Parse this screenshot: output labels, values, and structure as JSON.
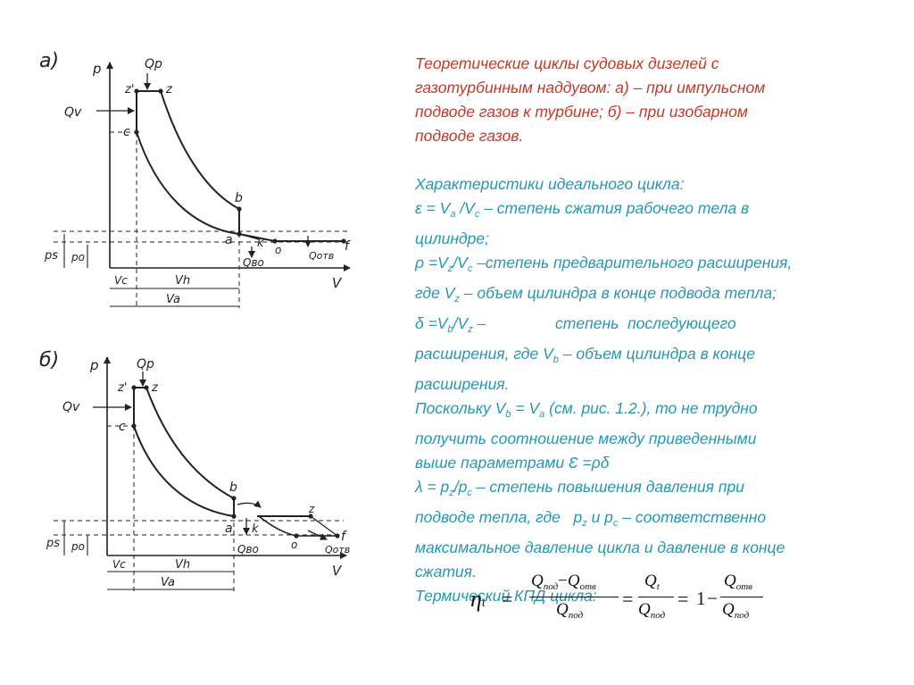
{
  "diagram_a": {
    "panel": "а)",
    "labels": {
      "p": "p",
      "v": "V",
      "qp": "Qр",
      "qv": "Qv",
      "z_prime": "z'",
      "z": "z",
      "c": "c",
      "b": "b",
      "a": "a",
      "k": "k",
      "o": "o",
      "f": "f",
      "qvo": "Qво",
      "qotv": "Qотв",
      "ps": "ps",
      "po": "po",
      "vc": "Vc",
      "vh": "Vh",
      "va": "Va"
    }
  },
  "diagram_b": {
    "panel": "б)",
    "labels": {
      "p": "p",
      "v": "V",
      "qp": "Qр",
      "qv": "Qv",
      "z_prime": "z'",
      "z": "z",
      "z2": "z",
      "c": "c",
      "b": "b",
      "a": "a",
      "k": "k",
      "o": "o",
      "f": "f",
      "qvo": "Qво",
      "qotv": "Qотв",
      "ps": "ps",
      "po": "po",
      "vc": "Vc",
      "vh": "Vh",
      "va": "Va"
    }
  },
  "text": {
    "intro": [
      "Теоретические циклы судовых дизелей с",
      "газотурбинным наддувом: а) – при импульсном",
      "подводе газов к турбине; б) – при изобарном",
      "подводе газов."
    ],
    "heading": "Характеристики идеального цикла:",
    "eps": {
      "a": "ε = V",
      "s1": "a",
      "b": " /V",
      "s2": "c",
      "c": " – степень сжатия рабочего тела в",
      "line2": "цилиндре;"
    },
    "rho": {
      "a": "ρ =V",
      "s1": "z",
      "b": "/V",
      "s2": "c",
      "c": " –степень  предварительного расширения,",
      "d": "где  V",
      "s3": "z",
      "e": " – объем цилиндра в конце подвода тепла;"
    },
    "delta": {
      "a": "δ =V",
      "s1": "b",
      "b": "/V",
      "s2": "z",
      "c": " –                степень  последующего",
      "d": "расширения, где  V",
      "s3": "b",
      "e": " – объем цилиндра в конце",
      "line3": "расширения."
    },
    "since": {
      "a": "Поскольку V",
      "s1": "b",
      "b": " = V",
      "s2": "a",
      "c": " (см. рис. 1.2.), то  не трудно",
      "line2": "получить соотношение между приведенными",
      "line3": "выше параметрами Ɛ =ρδ"
    },
    "lambda": {
      "a": "λ = p",
      "s1": "z",
      "b": "/p",
      "s2": "c",
      "c": " –  степень повышения давления при",
      "d": "подводе тепла, где   p",
      "s3": "z",
      "e": " и p",
      "s4": "c",
      "f": " – соответственно",
      "line3": "максимальное давление цикла и давление в конце",
      "line4": "сжатия."
    },
    "kpd": "Термический КПД цикла:"
  },
  "formula": {
    "eta": "η",
    "eta_sub": "t",
    "eq": "=",
    "q": "Q",
    "pod": "под",
    "otv": "отв",
    "t": "t",
    "minus": "−",
    "one": "1"
  }
}
